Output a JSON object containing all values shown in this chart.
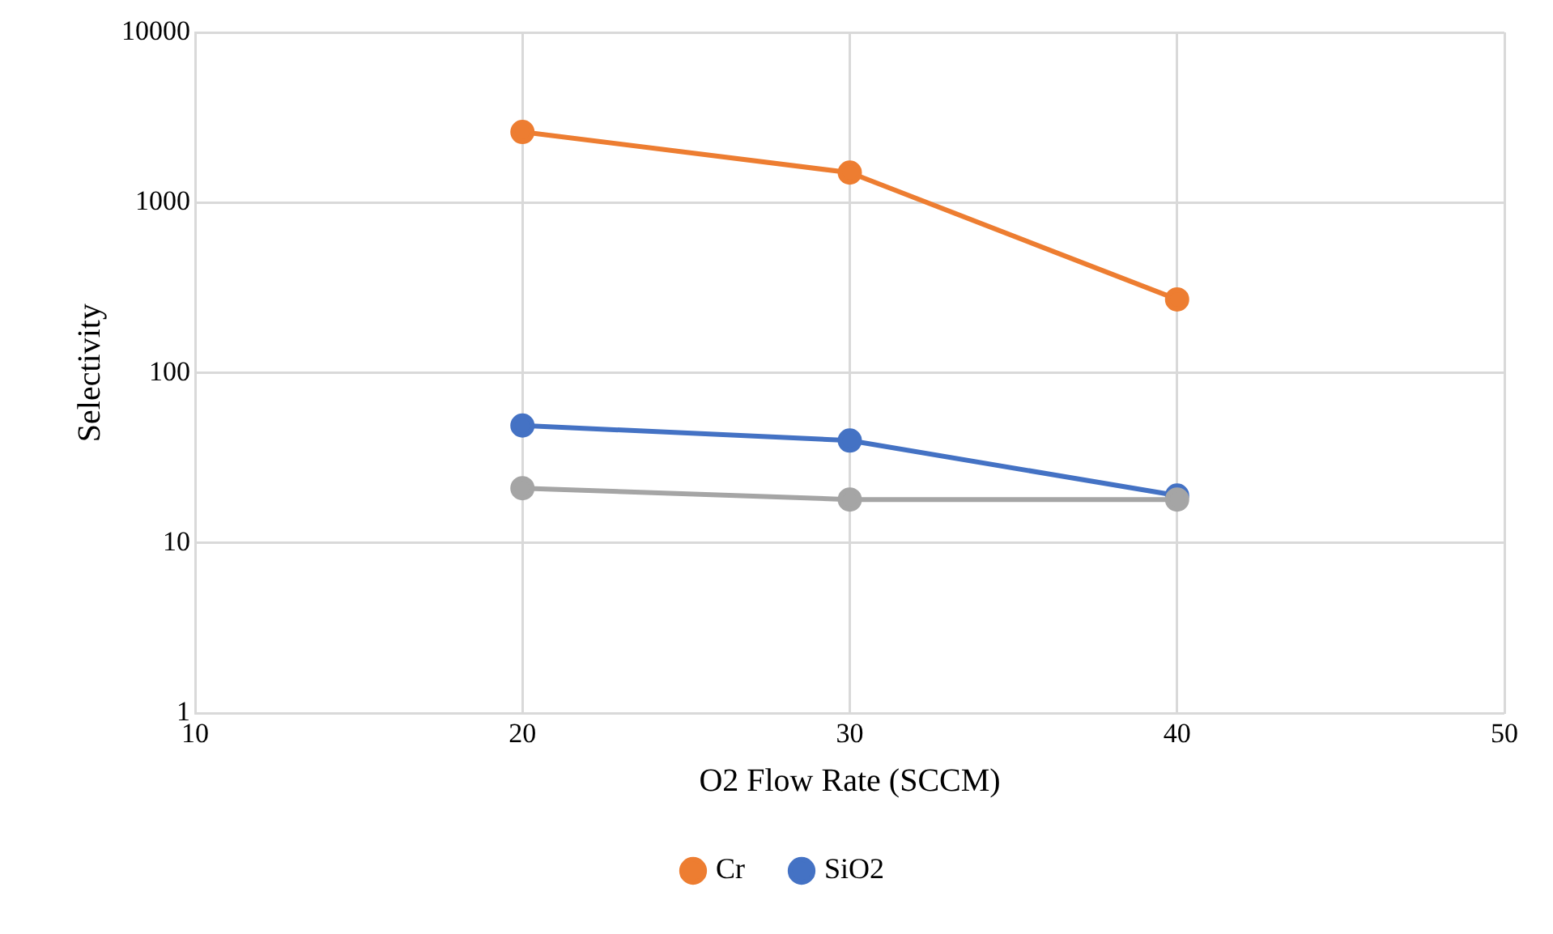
{
  "chart_data": {
    "type": "line",
    "xlabel": "O2 Flow Rate (SCCM)",
    "ylabel": "Selectivity",
    "x": [
      20,
      30,
      40
    ],
    "series": [
      {
        "name": "SiO2",
        "color": "#4472c4",
        "values": [
          49,
          40,
          19
        ]
      },
      {
        "name": "Cr",
        "color": "#ed7d31",
        "values": [
          2600,
          1500,
          270
        ]
      },
      {
        "color": "#a5a5a5",
        "values": [
          21,
          18,
          18
        ]
      }
    ],
    "log": "y",
    "xlim": [
      10,
      50
    ],
    "xticks": [
      10,
      20,
      30,
      40,
      50
    ],
    "ylim": [
      1,
      10000
    ],
    "yticks": [
      1,
      10,
      100,
      1000,
      10000
    ],
    "grid": true,
    "legend": "bottom",
    "marker": "circle",
    "line_style": "solid"
  }
}
